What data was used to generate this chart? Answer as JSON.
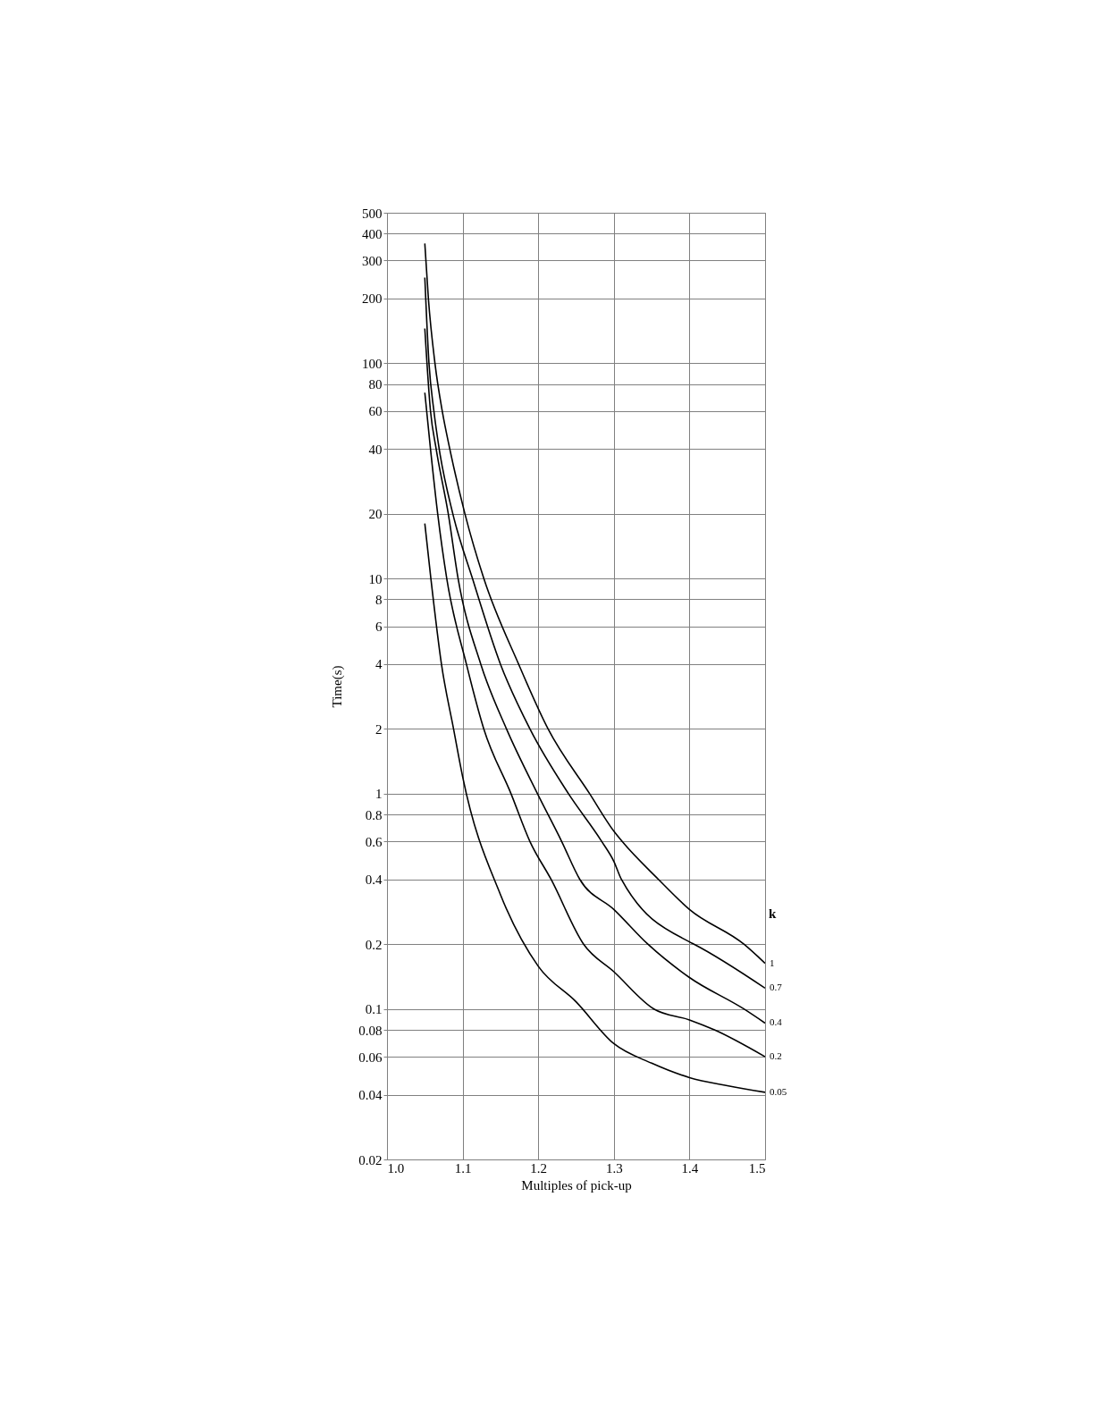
{
  "chart_data": {
    "type": "line",
    "xlabel": "Multiples of pick-up",
    "ylabel": "Time(s)",
    "legend_title": "k",
    "log": true,
    "grid": true,
    "xlim": [
      1.0,
      1.5
    ],
    "xticks": [
      {
        "value": 1.0,
        "label": "1.0"
      },
      1.1,
      1.2,
      1.3,
      1.4,
      1.5
    ],
    "ylim": [
      0.02,
      500
    ],
    "yticks": [
      0.02,
      0.04,
      0.06,
      0.08,
      0.1,
      0.2,
      0.4,
      0.6,
      0.8,
      1,
      2,
      4,
      6,
      8,
      10,
      20,
      40,
      60,
      80,
      100,
      200,
      300,
      400,
      500
    ],
    "series": [
      {
        "name": "1",
        "color": "#000000",
        "x": [
          1.05,
          1.0547,
          1.0634,
          1.073,
          1.083,
          1.103,
          1.128,
          1.174,
          1.213,
          1.268,
          1.3,
          1.311,
          1.359,
          1.4,
          1.472,
          1.5
        ],
        "values": [
          360,
          200,
          100,
          60,
          40,
          20,
          10,
          4,
          2,
          1,
          0.67,
          0.6,
          0.4,
          0.29,
          0.2,
          0.163
        ]
      },
      {
        "name": "0.7",
        "color": "#000000",
        "x": [
          1.05,
          1.0555,
          1.062,
          1.069,
          1.087,
          1.113,
          1.15,
          1.189,
          1.24,
          1.284,
          1.3,
          1.31,
          1.4,
          1.406,
          1.5
        ],
        "values": [
          250,
          100,
          60,
          40,
          20,
          10,
          4,
          2,
          1,
          0.6,
          0.485,
          0.4,
          0.205,
          0.2,
          0.125
        ]
      },
      {
        "name": "0.4",
        "color": "#000000",
        "x": [
          1.05,
          1.0575,
          1.065,
          1.081,
          1.094,
          1.124,
          1.158,
          1.199,
          1.231,
          1.255,
          1.3,
          1.345,
          1.4,
          1.472,
          1.5
        ],
        "values": [
          145,
          60,
          40,
          20,
          10,
          4,
          2,
          1,
          0.6,
          0.4,
          0.29,
          0.2,
          0.14,
          0.1,
          0.086
        ]
      },
      {
        "name": "0.2",
        "color": "#000000",
        "x": [
          1.05,
          1.0575,
          1.067,
          1.079,
          1.105,
          1.128,
          1.164,
          1.189,
          1.217,
          1.26,
          1.3,
          1.353,
          1.4,
          1.433,
          1.5
        ],
        "values": [
          73,
          40,
          20,
          10,
          4,
          2,
          1,
          0.6,
          0.4,
          0.2,
          0.149,
          0.1,
          0.089,
          0.08,
          0.06
        ]
      },
      {
        "name": "0.05",
        "color": "#000000",
        "x": [
          1.05,
          1.058,
          1.072,
          1.088,
          1.1,
          1.15,
          1.2,
          1.25,
          1.3,
          1.35,
          1.4,
          1.45,
          1.5
        ],
        "values": [
          18,
          10,
          4,
          2,
          1.2,
          0.34,
          0.158,
          0.108,
          0.069,
          0.056,
          0.048,
          0.044,
          0.041
        ]
      }
    ]
  }
}
